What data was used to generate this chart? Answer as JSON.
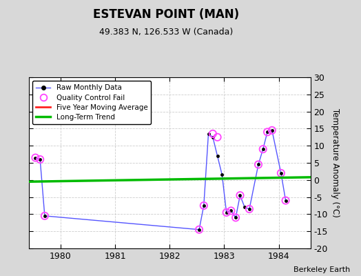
{
  "title": "ESTEVAN POINT (MAN)",
  "subtitle": "49.383 N, 126.533 W (Canada)",
  "ylabel": "Temperature Anomaly (°C)",
  "attribution": "Berkeley Earth",
  "xlim": [
    1979.42,
    1984.58
  ],
  "ylim": [
    -20,
    30
  ],
  "yticks": [
    -20,
    -15,
    -10,
    -5,
    0,
    5,
    10,
    15,
    20,
    25,
    30
  ],
  "xticks": [
    1980,
    1981,
    1982,
    1983,
    1984
  ],
  "background_color": "#d8d8d8",
  "plot_bg_color": "#ffffff",
  "raw_x": [
    1979.54,
    1979.625,
    1979.71,
    1982.54,
    1982.625,
    1982.71,
    1982.79,
    1982.875,
    1982.96,
    1983.04,
    1983.125,
    1983.21,
    1983.29,
    1983.375,
    1983.46,
    1983.625,
    1983.71,
    1983.79,
    1983.875,
    1984.04,
    1984.125
  ],
  "raw_y": [
    6.5,
    6.0,
    -10.5,
    -14.5,
    -7.5,
    13.5,
    12.5,
    7.0,
    1.5,
    -9.5,
    -9.0,
    -11.0,
    -4.5,
    -8.0,
    -8.5,
    4.5,
    9.0,
    14.0,
    14.5,
    2.0,
    -6.0
  ],
  "qc_x": [
    1979.54,
    1979.625,
    1979.71,
    1982.54,
    1982.625,
    1982.79,
    1982.875,
    1983.04,
    1983.125,
    1983.21,
    1983.29,
    1983.46,
    1983.625,
    1983.71,
    1983.79,
    1983.875,
    1984.04,
    1984.125
  ],
  "qc_y": [
    6.5,
    6.0,
    -10.5,
    -14.5,
    -7.5,
    13.5,
    12.5,
    -9.5,
    -9.0,
    -11.0,
    -4.5,
    -8.5,
    4.5,
    9.0,
    14.0,
    14.5,
    2.0,
    -6.0
  ],
  "trend_x": [
    1979.42,
    1984.58
  ],
  "trend_y": [
    -0.5,
    0.8
  ],
  "line_color": "#5555ff",
  "qc_color": "#ff44ff",
  "trend_color": "#00bb00",
  "avg_color": "#ff2222"
}
